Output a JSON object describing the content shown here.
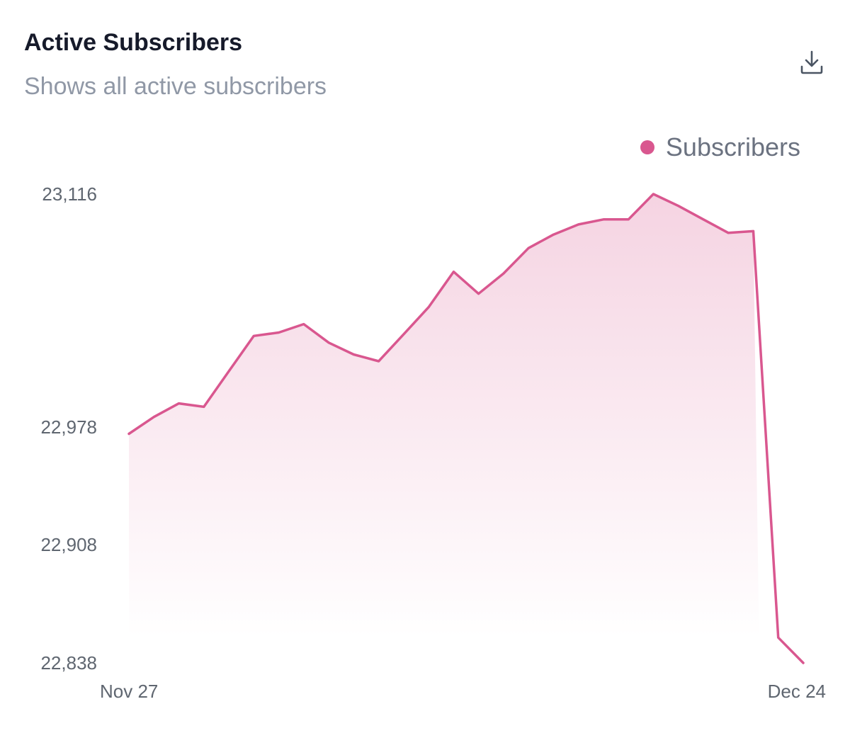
{
  "header": {
    "title": "Active Subscribers",
    "subtitle": "Shows all active subscribers"
  },
  "actions": {
    "download_icon": "download-icon"
  },
  "colors": {
    "series": "#d9578f",
    "title": "#161a2a",
    "subtitle": "#9098a6"
  },
  "chart_data": {
    "type": "area",
    "title": "Active Subscribers",
    "subtitle": "Shows all active subscribers",
    "legend_position": "top-right",
    "grid": false,
    "x_tick_labels": [
      "Nov 27",
      "Dec 24"
    ],
    "x": [
      "Nov 27",
      "Nov 28",
      "Nov 29",
      "Nov 30",
      "Dec 1",
      "Dec 2",
      "Dec 3",
      "Dec 4",
      "Dec 5",
      "Dec 6",
      "Dec 7",
      "Dec 8",
      "Dec 9",
      "Dec 10",
      "Dec 11",
      "Dec 12",
      "Dec 13",
      "Dec 14",
      "Dec 15",
      "Dec 16",
      "Dec 17",
      "Dec 18",
      "Dec 19",
      "Dec 20",
      "Dec 21",
      "Dec 22",
      "Dec 23",
      "Dec 24"
    ],
    "y_ticks": [
      22838,
      22908,
      22978,
      23116
    ],
    "y_tick_labels": [
      "22,838",
      "22,908",
      "22,978",
      "23,116"
    ],
    "ylim": [
      22838,
      23116
    ],
    "series": [
      {
        "name": "Subscribers",
        "values": [
          22974,
          22984,
          22992,
          22990,
          23011,
          23032,
          23034,
          23039,
          23028,
          23021,
          23017,
          23033,
          23049,
          23070,
          23057,
          23069,
          23084,
          23092,
          23098,
          23101,
          23101,
          23116,
          23109,
          23101,
          23093,
          23094,
          22853,
          22838
        ]
      }
    ]
  }
}
